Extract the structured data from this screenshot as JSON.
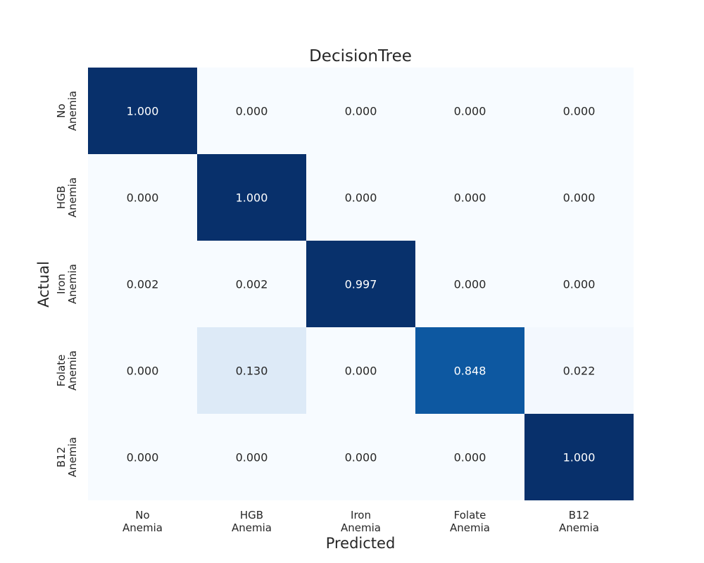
{
  "chart_data": {
    "type": "heatmap",
    "title": "DecisionTree",
    "xlabel": "Predicted",
    "ylabel": "Actual",
    "x_categories": [
      "No Anemia",
      "HGB Anemia",
      "Iron Anemia",
      "Folate Anemia",
      "B12 Anemia"
    ],
    "y_categories": [
      "No Anemia",
      "HGB Anemia",
      "Iron Anemia",
      "Folate Anemia",
      "B12 Anemia"
    ],
    "values": [
      [
        1.0,
        0.0,
        0.0,
        0.0,
        0.0
      ],
      [
        0.0,
        1.0,
        0.0,
        0.0,
        0.0
      ],
      [
        0.002,
        0.002,
        0.997,
        0.0,
        0.0
      ],
      [
        0.0,
        0.13,
        0.0,
        0.848,
        0.022
      ],
      [
        0.0,
        0.0,
        0.0,
        0.0,
        1.0
      ]
    ],
    "value_format": "3 decimals",
    "colormap": "Blues",
    "vmin": 0,
    "vmax": 1,
    "colorbar": false,
    "grid": false
  }
}
